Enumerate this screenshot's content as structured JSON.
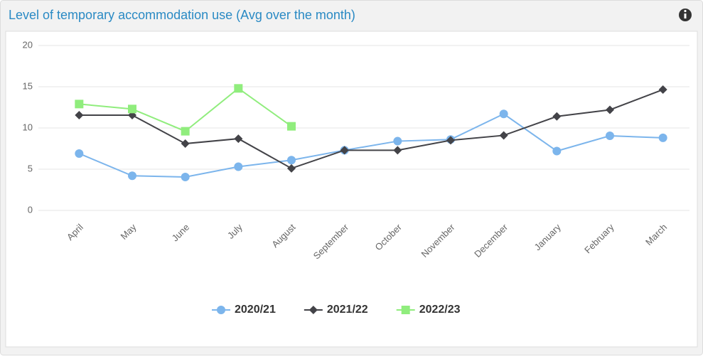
{
  "chart_data": {
    "type": "line",
    "title": "Level of temporary accommodation use (Avg over the month)",
    "categories": [
      "April",
      "May",
      "June",
      "July",
      "August",
      "September",
      "October",
      "November",
      "December",
      "January",
      "February",
      "March"
    ],
    "series": [
      {
        "name": "2020/21",
        "color": "#7cb5ec",
        "marker": "circle",
        "values": [
          6.9,
          4.2,
          4.05,
          5.3,
          6.1,
          7.3,
          8.4,
          8.6,
          11.7,
          7.2,
          9.05,
          8.8
        ]
      },
      {
        "name": "2021/22",
        "color": "#434348",
        "marker": "diamond",
        "values": [
          11.55,
          11.55,
          8.1,
          8.7,
          5.1,
          7.3,
          7.3,
          8.5,
          9.1,
          11.4,
          12.2,
          14.65
        ]
      },
      {
        "name": "2022/23",
        "color": "#90ed7d",
        "marker": "square",
        "values": [
          12.9,
          12.3,
          9.6,
          14.8,
          10.2,
          null,
          null,
          null,
          null,
          null,
          null,
          null
        ]
      }
    ],
    "ylim": [
      0,
      20
    ],
    "yticks": [
      0,
      5,
      10,
      15,
      20
    ],
    "grid": true,
    "legend": "bottom"
  }
}
